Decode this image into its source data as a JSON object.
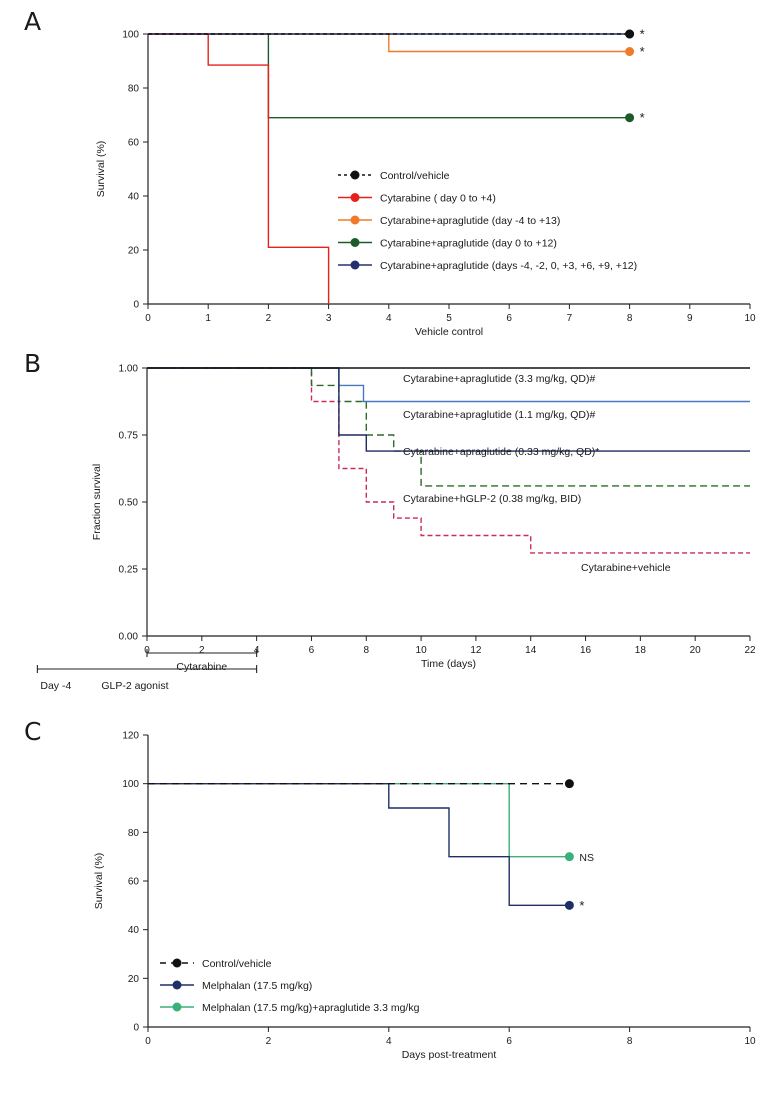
{
  "panels": {
    "A": {
      "letter": "A"
    },
    "B": {
      "letter": "B"
    },
    "C": {
      "letter": "C"
    }
  },
  "chart_data": [
    {
      "id": "A",
      "type": "line",
      "title": "",
      "xlabel": "Vehicle control",
      "ylabel": "Survival (%)",
      "xlim": [
        0,
        10
      ],
      "ylim": [
        0,
        100
      ],
      "xticks": [
        "0",
        "1",
        "2",
        "3",
        "4",
        "5",
        "6",
        "7",
        "8",
        "9",
        "10"
      ],
      "yticks": [
        "0",
        "20",
        "40",
        "60",
        "80",
        "100"
      ],
      "legend_position": "center-right",
      "series": [
        {
          "name": "Control/vehicle",
          "color": "#111111",
          "dash": "4,3",
          "x": [
            0,
            8
          ],
          "y": [
            100,
            100
          ],
          "marker": "end",
          "significance": "*"
        },
        {
          "name": "Cytarabine ( day 0 to +4)",
          "color": "#e8201c",
          "dash": "",
          "x": [
            0,
            1,
            2,
            3
          ],
          "y": [
            100,
            88.5,
            21,
            0
          ],
          "marker": "none",
          "significance": ""
        },
        {
          "name": "Cytarabine+apraglutide (day -4 to +13)",
          "color": "#f07a2a",
          "dash": "",
          "x": [
            0,
            4,
            8
          ],
          "y": [
            100,
            93.5,
            93.5
          ],
          "marker": "end",
          "significance": "*"
        },
        {
          "name": "Cytarabine+apraglutide (day 0 to +12)",
          "color": "#1e5a2a",
          "dash": "",
          "x": [
            0,
            2,
            8
          ],
          "y": [
            100,
            69,
            69
          ],
          "marker": "end",
          "significance": "*"
        },
        {
          "name": "Cytarabine+apraglutide (days -4, -2, 0, +3, +6, +9, +12)",
          "color": "#26306e",
          "dash": "",
          "x": [
            0,
            8
          ],
          "y": [
            100,
            100
          ],
          "marker": "end",
          "significance": ""
        }
      ]
    },
    {
      "id": "B",
      "type": "line",
      "title": "",
      "xlabel": "Time (days)",
      "ylabel": "Fraction survival",
      "xlim": [
        0,
        22
      ],
      "ylim": [
        0,
        1
      ],
      "xticks": [
        "0",
        "2",
        "4",
        "6",
        "8",
        "10",
        "12",
        "14",
        "16",
        "18",
        "20",
        "22"
      ],
      "yticks": [
        "0.00",
        "0.25",
        "0.50",
        "0.75",
        "1.00"
      ],
      "series": [
        {
          "name": "Cytarabine+apraglutide (3.3 mg/kg, QD)#",
          "color": "#111111",
          "dash": "",
          "x": [
            0,
            22
          ],
          "y": [
            1.0,
            1.0
          ]
        },
        {
          "name": "Cytarabine+apraglutide (1.1 mg/kg, QD)#",
          "color": "#4a78c0",
          "dash": "",
          "x": [
            0,
            7,
            7.9,
            22
          ],
          "y": [
            1.0,
            0.935,
            0.875,
            0.875
          ]
        },
        {
          "name": "Cytarabine+apraglutide (0.33 mg/kg, QD)*",
          "color": "#1c2a5e",
          "dash": "",
          "x": [
            0,
            7,
            8,
            22
          ],
          "y": [
            1.0,
            0.75,
            0.69,
            0.69
          ]
        },
        {
          "name": "Cytarabine+hGLP-2 (0.38 mg/kg, BID)",
          "color": "#2d6b2a",
          "dash": "7,4",
          "x": [
            0,
            6,
            7,
            8,
            9,
            10,
            22
          ],
          "y": [
            1.0,
            0.935,
            0.875,
            0.75,
            0.69,
            0.56,
            0.56
          ]
        },
        {
          "name": "Cytarabine+vehicle",
          "color": "#cc2b55",
          "dash": "5,3",
          "x": [
            0,
            6,
            7,
            8,
            9,
            10,
            14,
            22
          ],
          "y": [
            1.0,
            0.875,
            0.625,
            0.5,
            0.44,
            0.375,
            0.31,
            0.31
          ]
        }
      ],
      "dosing": [
        {
          "label": "Cytarabine",
          "start_day": 0,
          "end_day": 4
        },
        {
          "label": "GLP-2 agonist",
          "start_label": "Day -4",
          "start_day": -4,
          "end_day": 4
        }
      ]
    },
    {
      "id": "C",
      "type": "line",
      "title": "",
      "xlabel": "Days post-treatment",
      "ylabel": "Survival (%)",
      "xlim": [
        0,
        10
      ],
      "ylim": [
        0,
        120
      ],
      "xticks": [
        "0",
        "2",
        "4",
        "6",
        "8",
        "10"
      ],
      "yticks": [
        "0",
        "20",
        "40",
        "60",
        "80",
        "100",
        "120"
      ],
      "legend_position": "bottom-left",
      "series": [
        {
          "name": "Control/vehicle",
          "color": "#111111",
          "dash": "7,5",
          "x": [
            0,
            7
          ],
          "y": [
            100,
            100
          ],
          "marker": "end",
          "significance": ""
        },
        {
          "name": "Melphalan (17.5 mg/kg)",
          "color": "#1f2f66",
          "dash": "",
          "x": [
            0,
            4,
            5,
            6,
            7
          ],
          "y": [
            100,
            90,
            70,
            50,
            50
          ],
          "marker": "end",
          "significance": "*"
        },
        {
          "name": "Melphalan (17.5 mg/kg)+apraglutide 3.3 mg/kg",
          "color": "#3bb079",
          "dash": "",
          "x": [
            0,
            6,
            7
          ],
          "y": [
            100,
            70,
            70
          ],
          "marker": "end",
          "significance": "NS"
        }
      ]
    }
  ]
}
